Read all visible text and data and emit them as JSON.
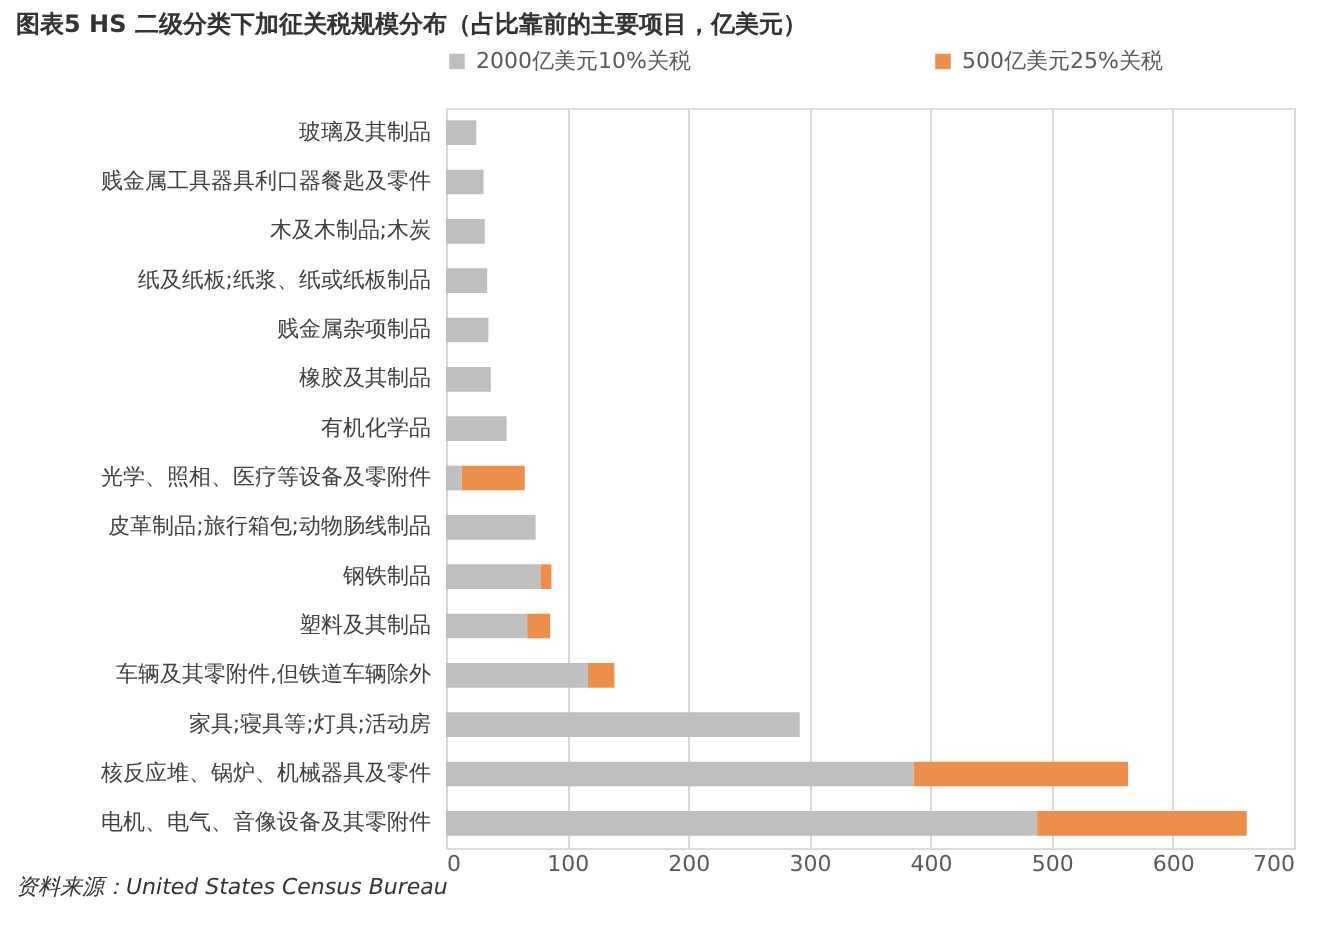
{
  "chart_data": {
    "type": "bar",
    "orientation": "horizontal",
    "stacked": true,
    "title": "图表5    HS 二级分类下加征关税规模分布（占比靠前的主要项目，亿美元）",
    "categories": [
      "玻璃及其制品",
      "贱金属工具器具利口器餐匙及零件",
      "木及木制品;木炭",
      "纸及纸板;纸浆、纸或纸板制品",
      "贱金属杂项制品",
      "橡胶及其制品",
      "有机化学品",
      "光学、照相、医疗等设备及零附件",
      "皮革制品;旅行箱包;动物肠线制品",
      "钢铁制品",
      "塑料及其制品",
      "车辆及其零附件,但铁道车辆除外",
      "家具;寝具等;灯具;活动房",
      "核反应堆、锅炉、机械器具及零件",
      "电机、电气、音像设备及其零附件"
    ],
    "series": [
      {
        "name": "2000亿美元10%关税",
        "color": "#bfbfbf",
        "values": [
          25,
          31,
          32,
          34,
          35,
          37,
          50,
          13,
          74,
          78,
          67,
          117,
          292,
          386,
          488
        ]
      },
      {
        "name": "500亿美元25%关税",
        "color": "#ed8f4a",
        "values": [
          null,
          null,
          null,
          null,
          null,
          null,
          null,
          52,
          null,
          9,
          19,
          22,
          null,
          177,
          173
        ]
      }
    ],
    "xlim": [
      0,
      700
    ],
    "xticks": [
      0,
      100,
      200,
      300,
      400,
      500,
      600,
      700
    ],
    "grid": "x",
    "legend": "top",
    "annotations": [
      "资料来源：United States Census Bureau"
    ]
  }
}
